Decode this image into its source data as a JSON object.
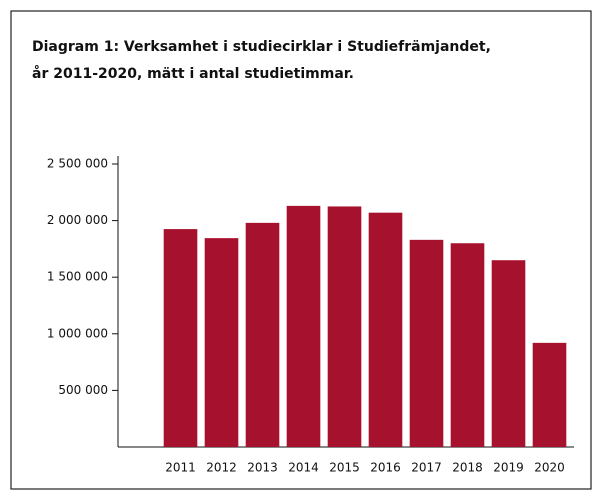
{
  "chart_data": {
    "type": "bar",
    "title": [
      "Diagram 1: Verksamhet i studiecirklar i Studiefrämjandet,",
      "år 2011-2020, mätt i antal studietimmar."
    ],
    "categories": [
      "2011",
      "2012",
      "2013",
      "2014",
      "2015",
      "2016",
      "2017",
      "2018",
      "2019",
      "2020"
    ],
    "values": [
      1925000,
      1845000,
      1980000,
      2130000,
      2125000,
      2070000,
      1830000,
      1800000,
      1650000,
      920000
    ],
    "color": "#a6112e",
    "ylim": [
      0,
      2500000
    ],
    "yticks": [
      {
        "value": 500000,
        "label": "500 000"
      },
      {
        "value": 1000000,
        "label": "1 000 000"
      },
      {
        "value": 1500000,
        "label": "1 500 000"
      },
      {
        "value": 2000000,
        "label": "2 000 000"
      },
      {
        "value": 2500000,
        "label": "2 500 000"
      }
    ],
    "grid": false
  }
}
